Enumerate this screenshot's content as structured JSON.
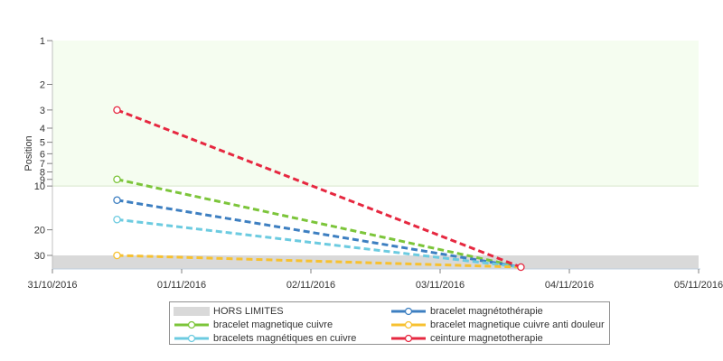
{
  "chart_data": {
    "type": "line",
    "title": "",
    "xlabel": "",
    "ylabel": "Position",
    "y_scale": "log",
    "y_reversed": true,
    "ylim": [
      1,
      34
    ],
    "y_ticks": [
      1,
      2,
      3,
      4,
      5,
      6,
      7,
      8,
      9,
      10,
      20,
      30
    ],
    "x_ticks": [
      "31/10/2016",
      "01/11/2016",
      "02/11/2016",
      "03/11/2016",
      "04/11/2016",
      "05/11/2016"
    ],
    "xlim": [
      "2016-10-31T00:00",
      "2016-11-05T00:00"
    ],
    "x": [
      "2016-10-31T12:00",
      "2016-11-03T15:00"
    ],
    "out_of_limits": {
      "label": "HORS LIMITES",
      "from": 30,
      "color": "#d9d9d9"
    },
    "top_band": {
      "from": 1,
      "to": 10,
      "color": "#f5fdf0"
    },
    "series": [
      {
        "name": "bracelet magnetique cuivre",
        "color": "#7cc53a",
        "values": [
          9,
          34
        ]
      },
      {
        "name": "bracelet magnétothérapie",
        "color": "#3d7fc1",
        "values": [
          12.5,
          34
        ]
      },
      {
        "name": "bracelets magnétiques en cuivre",
        "color": "#6ccbe0",
        "values": [
          17,
          34
        ]
      },
      {
        "name": "bracelet magnetique cuivre anti douleur",
        "color": "#f7c130",
        "values": [
          30,
          34
        ]
      },
      {
        "name": "ceinture magnetotherapie",
        "color": "#e62840",
        "values": [
          3,
          34
        ]
      }
    ],
    "legend_position": "bottom",
    "grid": false
  }
}
